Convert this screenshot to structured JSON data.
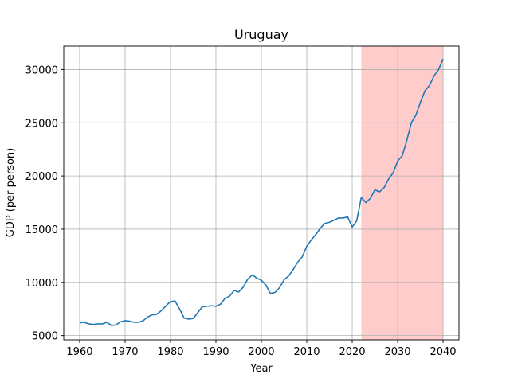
{
  "chart_data": {
    "type": "line",
    "title": "Uruguay",
    "xlabel": "Year",
    "ylabel": "GDP (per person)",
    "xlim": [
      1956.5,
      2043.5
    ],
    "ylim": [
      4600,
      32200
    ],
    "xticks": [
      1960,
      1970,
      1980,
      1990,
      2000,
      2010,
      2020,
      2030,
      2040
    ],
    "yticks": [
      5000,
      10000,
      15000,
      20000,
      25000,
      30000
    ],
    "grid": true,
    "line_color": "#1f77b4",
    "highlight": {
      "x_start": 2022,
      "x_end": 2040,
      "color": "#ffcccc"
    },
    "series": [
      {
        "x": [
          1960,
          1961,
          1962,
          1963,
          1964,
          1965,
          1966,
          1967,
          1968,
          1969,
          1970,
          1971,
          1972,
          1973,
          1974,
          1975,
          1976,
          1977,
          1978,
          1979,
          1980,
          1981,
          1982,
          1983,
          1984,
          1985,
          1986,
          1987,
          1988,
          1989,
          1990,
          1991,
          1992,
          1993,
          1994,
          1995,
          1996,
          1997,
          1998,
          1999,
          2000,
          2001,
          2002,
          2003,
          2004,
          2005,
          2006,
          2007,
          2008,
          2009,
          2010,
          2011,
          2012,
          2013,
          2014,
          2015,
          2016,
          2017,
          2018,
          2019,
          2020,
          2021,
          2022,
          2023,
          2024,
          2025,
          2026,
          2027,
          2028,
          2029,
          2030,
          2031,
          2032,
          2033,
          2034,
          2035,
          2036,
          2037,
          2038,
          2039,
          2040
        ],
        "y": [
          6200,
          6250,
          6100,
          6050,
          6100,
          6100,
          6250,
          5950,
          6000,
          6300,
          6400,
          6350,
          6250,
          6250,
          6400,
          6750,
          6950,
          7000,
          7350,
          7800,
          8200,
          8250,
          7500,
          6650,
          6550,
          6600,
          7150,
          7700,
          7750,
          7800,
          7750,
          7950,
          8500,
          8700,
          9250,
          9100,
          9550,
          10300,
          10700,
          10400,
          10200,
          9750,
          8950,
          9050,
          9500,
          10250,
          10600,
          11200,
          11900,
          12400,
          13400,
          14000,
          14500,
          15100,
          15550,
          15650,
          15850,
          16050,
          16050,
          16150,
          15200,
          15800,
          18000,
          17500,
          17900,
          18700,
          18500,
          18900,
          19700,
          20300,
          21400,
          21900,
          23300,
          25000,
          25700,
          26900,
          28000,
          28500,
          29400,
          30000,
          31000
        ]
      }
    ]
  }
}
